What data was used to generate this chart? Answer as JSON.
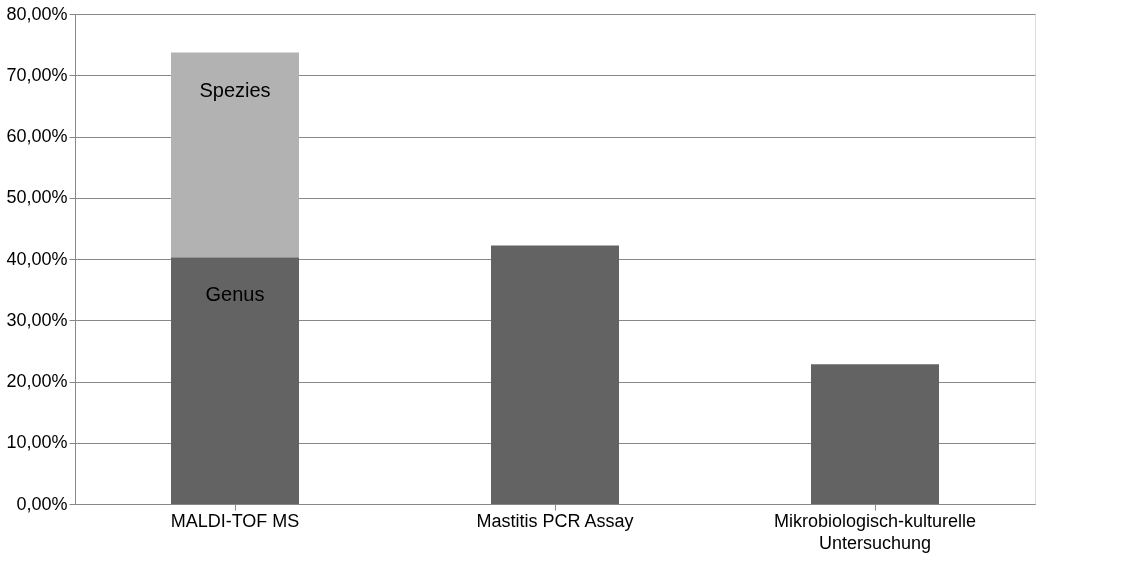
{
  "chart_data": {
    "type": "bar",
    "stacked": true,
    "categories": [
      "MALDI-TOF MS",
      "Mastitis PCR Assay",
      "Mikrobiologisch-kulturelle Untersuchung"
    ],
    "series": [
      {
        "name": "Genus",
        "color": "#636363",
        "values": [
          40.3,
          42.2,
          22.8
        ]
      },
      {
        "name": "Spezies",
        "color": "#b2b2b2",
        "values": [
          33.4,
          null,
          null
        ]
      }
    ],
    "ylim": [
      0,
      80
    ],
    "yticks": [
      {
        "value": 0,
        "label": "0,00%"
      },
      {
        "value": 10,
        "label": "10,00%"
      },
      {
        "value": 20,
        "label": "20,00%"
      },
      {
        "value": 30,
        "label": "30,00%"
      },
      {
        "value": 40,
        "label": "40,00%"
      },
      {
        "value": 50,
        "label": "50,00%"
      },
      {
        "value": 60,
        "label": "60,00%"
      },
      {
        "value": 70,
        "label": "70,00%"
      },
      {
        "value": 80,
        "label": "80,00%"
      }
    ],
    "grid": "y"
  }
}
